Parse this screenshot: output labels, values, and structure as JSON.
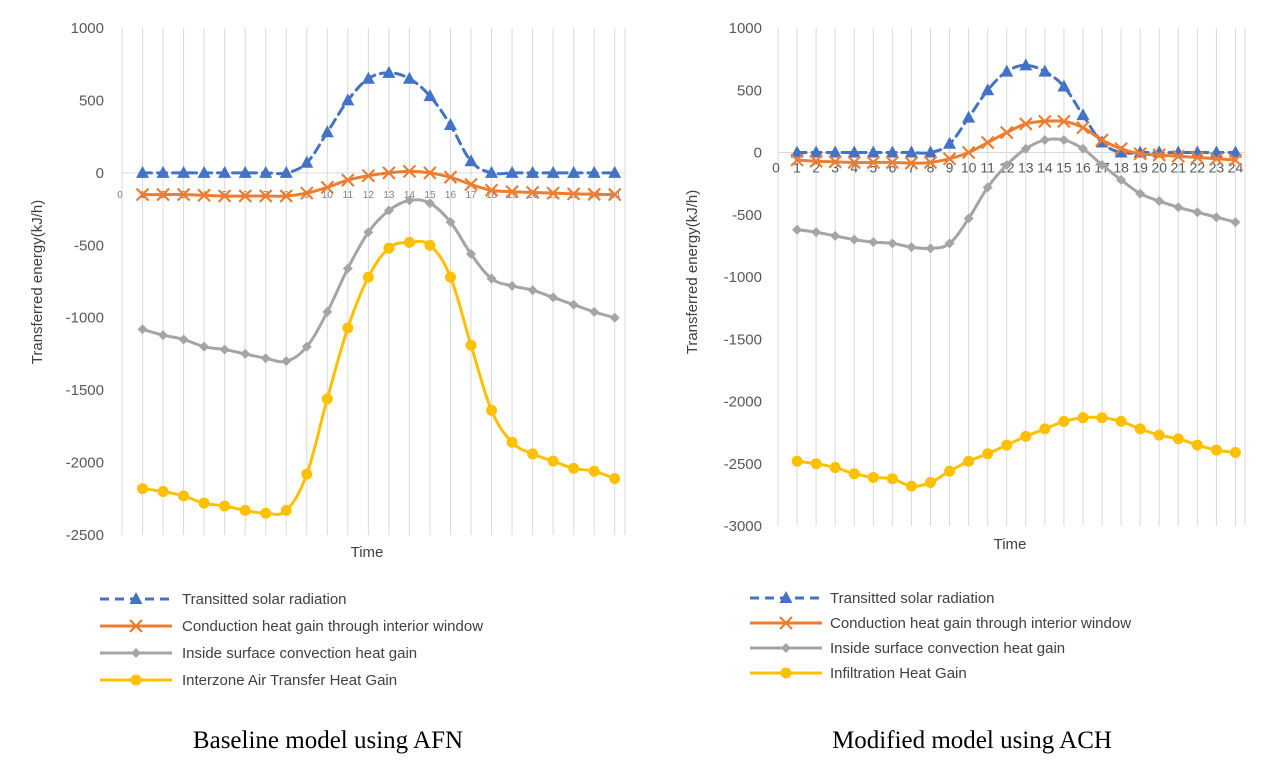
{
  "chart_data": [
    {
      "type": "line",
      "caption": "Baseline model using AFN",
      "xlabel": "Time",
      "ylabel": "Transferred energy(kJ/h)",
      "ylim": [
        -2500,
        1000
      ],
      "yticks": [
        "1000",
        "500",
        "0",
        "-500",
        "-1000",
        "-1500",
        "-2000",
        "-2500"
      ],
      "categories": [
        "1",
        "2",
        "3",
        "4",
        "5",
        "6",
        "7",
        "8",
        "9",
        "10",
        "11",
        "12",
        "13",
        "14",
        "15",
        "16",
        "17",
        "18",
        "19",
        "20",
        "21",
        "22",
        "23",
        "24"
      ],
      "x_origin_label": "0",
      "series": [
        {
          "name": "Transitted solar radiation",
          "color": "#4472c4",
          "dash": true,
          "marker": "triangle",
          "values": [
            0,
            0,
            0,
            0,
            0,
            0,
            0,
            0,
            70,
            280,
            500,
            650,
            690,
            650,
            530,
            330,
            80,
            0,
            0,
            0,
            0,
            0,
            0,
            0
          ]
        },
        {
          "name": "Conduction heat gain through interior window",
          "color": "#ed7d31",
          "dash": false,
          "marker": "x",
          "values": [
            -150,
            -150,
            -150,
            -155,
            -160,
            -160,
            -160,
            -160,
            -140,
            -100,
            -50,
            -20,
            0,
            10,
            0,
            -30,
            -80,
            -120,
            -130,
            -135,
            -140,
            -145,
            -148,
            -150
          ]
        },
        {
          "name": "Inside surface convection heat gain",
          "color": "#a5a5a5",
          "dash": false,
          "marker": "diamond",
          "values": [
            -1080,
            -1120,
            -1150,
            -1200,
            -1220,
            -1250,
            -1280,
            -1300,
            -1200,
            -960,
            -660,
            -410,
            -260,
            -190,
            -210,
            -340,
            -560,
            -730,
            -780,
            -810,
            -860,
            -910,
            -960,
            -1000
          ]
        },
        {
          "name": "Interzone Air Transfer Heat Gain",
          "color": "#ffc000",
          "dash": false,
          "marker": "circle",
          "values": [
            -2180,
            -2200,
            -2230,
            -2280,
            -2300,
            -2330,
            -2350,
            -2330,
            -2080,
            -1560,
            -1070,
            -720,
            -520,
            -480,
            -500,
            -720,
            -1190,
            -1640,
            -1860,
            -1940,
            -1990,
            -2040,
            -2060,
            -2110
          ]
        }
      ]
    },
    {
      "type": "line",
      "caption": "Modified model using ACH",
      "xlabel": "Time",
      "ylabel": "Transferred energy(kJ/h)",
      "ylim": [
        -3000,
        1000
      ],
      "yticks": [
        "1000",
        "500",
        "0",
        "-500",
        "-1000",
        "-1500",
        "-2000",
        "-2500",
        "-3000"
      ],
      "categories": [
        "1",
        "2",
        "3",
        "4",
        "5",
        "6",
        "7",
        "8",
        "9",
        "10",
        "11",
        "12",
        "13",
        "14",
        "15",
        "16",
        "17",
        "18",
        "19",
        "20",
        "21",
        "22",
        "23",
        "24"
      ],
      "x_origin_label": "0",
      "series": [
        {
          "name": "Transitted solar radiation",
          "color": "#4472c4",
          "dash": true,
          "marker": "triangle",
          "values": [
            0,
            0,
            0,
            0,
            0,
            0,
            0,
            0,
            70,
            280,
            500,
            650,
            700,
            650,
            530,
            300,
            80,
            0,
            0,
            0,
            0,
            0,
            0,
            0
          ]
        },
        {
          "name": "Conduction heat gain through interior window",
          "color": "#ed7d31",
          "dash": false,
          "marker": "x",
          "values": [
            -60,
            -70,
            -75,
            -80,
            -80,
            -80,
            -85,
            -80,
            -50,
            0,
            80,
            160,
            230,
            250,
            250,
            200,
            100,
            30,
            -10,
            -20,
            -30,
            -40,
            -50,
            -60
          ]
        },
        {
          "name": "Inside surface convection heat gain",
          "color": "#a5a5a5",
          "dash": false,
          "marker": "diamond",
          "values": [
            -620,
            -640,
            -670,
            -700,
            -720,
            -730,
            -760,
            -770,
            -730,
            -530,
            -280,
            -100,
            30,
            100,
            100,
            30,
            -100,
            -220,
            -330,
            -390,
            -440,
            -480,
            -520,
            -560
          ]
        },
        {
          "name": "Infiltration Heat Gain",
          "color": "#ffc000",
          "dash": false,
          "marker": "circle",
          "values": [
            -2480,
            -2500,
            -2530,
            -2580,
            -2610,
            -2620,
            -2680,
            -2650,
            -2560,
            -2480,
            -2420,
            -2350,
            -2280,
            -2220,
            -2160,
            -2130,
            -2130,
            -2160,
            -2220,
            -2270,
            -2300,
            -2350,
            -2390,
            -2410
          ]
        }
      ]
    }
  ]
}
